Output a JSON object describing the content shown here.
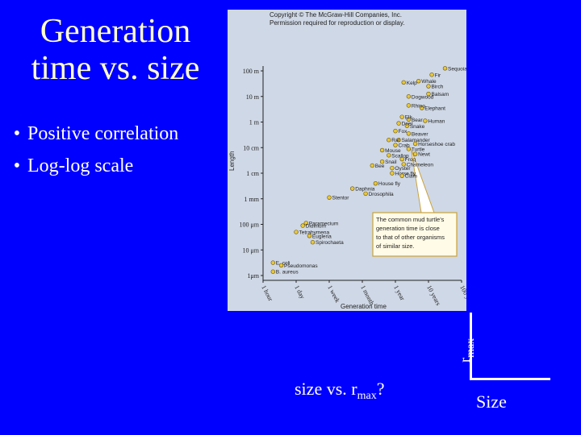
{
  "slide": {
    "title_line1": "Generation",
    "title_line2": "time vs. size",
    "bullets": [
      "Positive correlation",
      "Log-log scale"
    ],
    "question_prefix": "size vs. r",
    "question_sub": "max",
    "question_suffix": "?",
    "sketch_y_label_base": "r",
    "sketch_y_label_sub": "max",
    "sketch_x_label": "Size",
    "colors": {
      "background": "#0000ff",
      "title": "#ffffcc",
      "text": "#ffffff",
      "figure_bg": "#cfd8e6",
      "points": "#e8c83a"
    }
  },
  "chart_data": {
    "type": "scatter",
    "scale": "log-log",
    "copyright": "Copyright © The McGraw-Hill Companies, Inc.",
    "permission": "Permission required for reproduction or display.",
    "xlabel": "Generation time",
    "ylabel": "Length",
    "x_ticks": [
      "1 hour",
      "1 day",
      "1 week",
      "1 month",
      "1 year",
      "10 years",
      "100 years"
    ],
    "y_ticks": [
      "1μm",
      "10 μm",
      "100 μm",
      "1 mm",
      "1 cm",
      "10 cm",
      "1 m",
      "10 m",
      "100 m"
    ],
    "callout": [
      "The common mud turtle's",
      "generation time is close",
      "to that of other organisms",
      "of similar size."
    ],
    "points": [
      {
        "label": "E. coli",
        "x": 0.3,
        "y": 0.5
      },
      {
        "label": "Pseudomonas",
        "x": 0.55,
        "y": 0.4
      },
      {
        "label": "B. aureus",
        "x": 0.3,
        "y": 0.15
      },
      {
        "label": "Paramecium",
        "x": 1.3,
        "y": 2.05
      },
      {
        "label": "Didinium",
        "x": 1.2,
        "y": 1.95
      },
      {
        "label": "Tetrahymena",
        "x": 1.0,
        "y": 1.7
      },
      {
        "label": "Euglena",
        "x": 1.4,
        "y": 1.55
      },
      {
        "label": "Spirochaeta",
        "x": 1.5,
        "y": 1.3
      },
      {
        "label": "Stentor",
        "x": 2.0,
        "y": 3.05
      },
      {
        "label": "Daphnia",
        "x": 2.7,
        "y": 3.4
      },
      {
        "label": "Drosophila",
        "x": 3.1,
        "y": 3.2
      },
      {
        "label": "House fly",
        "x": 3.4,
        "y": 3.6
      },
      {
        "label": "Bee",
        "x": 3.3,
        "y": 4.3
      },
      {
        "label": "Snail",
        "x": 3.6,
        "y": 4.45
      },
      {
        "label": "Scallop",
        "x": 3.8,
        "y": 4.7
      },
      {
        "label": "Mouse",
        "x": 3.6,
        "y": 4.9
      },
      {
        "label": "Oyster",
        "x": 3.9,
        "y": 4.2
      },
      {
        "label": "Horse fly",
        "x": 3.9,
        "y": 4.0
      },
      {
        "label": "Clam",
        "x": 4.2,
        "y": 3.9
      },
      {
        "label": "Chameleon",
        "x": 4.25,
        "y": 4.35
      },
      {
        "label": "Frog",
        "x": 4.2,
        "y": 4.55
      },
      {
        "label": "Newt",
        "x": 4.6,
        "y": 4.75
      },
      {
        "label": "Turtle",
        "x": 4.4,
        "y": 4.95
      },
      {
        "label": "Horseshoe crab",
        "x": 4.6,
        "y": 5.15
      },
      {
        "label": "Crab",
        "x": 4.0,
        "y": 5.1
      },
      {
        "label": "Salamander",
        "x": 4.1,
        "y": 5.3
      },
      {
        "label": "Rat",
        "x": 3.8,
        "y": 5.3
      },
      {
        "label": "Fox",
        "x": 4.0,
        "y": 5.65
      },
      {
        "label": "Beaver",
        "x": 4.4,
        "y": 5.55
      },
      {
        "label": "Snake",
        "x": 4.35,
        "y": 5.85
      },
      {
        "label": "Deer",
        "x": 4.1,
        "y": 5.95
      },
      {
        "label": "Human",
        "x": 4.9,
        "y": 6.05
      },
      {
        "label": "Bear",
        "x": 4.4,
        "y": 6.1
      },
      {
        "label": "Elk",
        "x": 4.2,
        "y": 6.2
      },
      {
        "label": "Elephant",
        "x": 4.8,
        "y": 6.55
      },
      {
        "label": "Rhino",
        "x": 4.4,
        "y": 6.65
      },
      {
        "label": "Dogwood",
        "x": 4.4,
        "y": 7.0
      },
      {
        "label": "Balsam",
        "x": 5.0,
        "y": 7.1
      },
      {
        "label": "Kelp",
        "x": 4.25,
        "y": 7.55
      },
      {
        "label": "Whale",
        "x": 4.7,
        "y": 7.6
      },
      {
        "label": "Birch",
        "x": 5.0,
        "y": 7.4
      },
      {
        "label": "Fir",
        "x": 5.1,
        "y": 7.85
      },
      {
        "label": "Sequoia",
        "x": 5.5,
        "y": 8.1
      }
    ]
  }
}
